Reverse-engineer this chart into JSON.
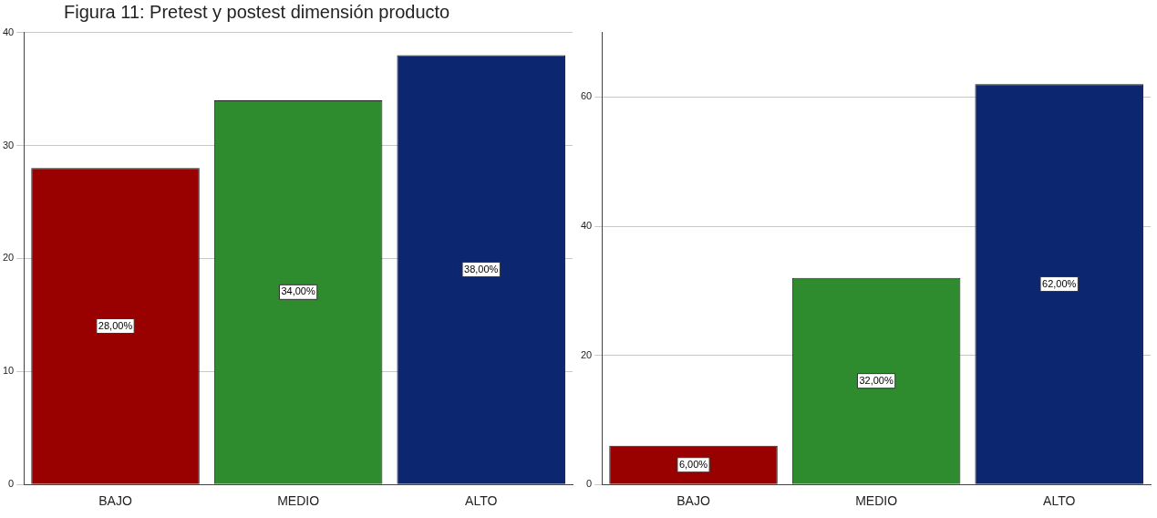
{
  "chart_data": [
    {
      "type": "bar",
      "title": "Figura 11: Pretest y postest dimensión producto",
      "categories": [
        "BAJO",
        "MEDIO",
        "ALTO"
      ],
      "values": [
        28,
        34,
        38
      ],
      "colors": [
        "#990000",
        "#2e8b2e",
        "#0c2670"
      ],
      "value_labels": [
        "28,00%",
        "34,00%",
        "38,00%"
      ],
      "ylim": [
        0,
        40
      ],
      "yticks": [
        0,
        10,
        20,
        30,
        40
      ],
      "grid": "y"
    },
    {
      "type": "bar",
      "categories": [
        "BAJO",
        "MEDIO",
        "ALTO"
      ],
      "values": [
        6,
        32,
        62
      ],
      "colors": [
        "#990000",
        "#2e8b2e",
        "#0c2670"
      ],
      "value_labels": [
        "6,00%",
        "32,00%",
        "62,00%"
      ],
      "ylim": [
        0,
        70
      ],
      "yticks": [
        0,
        20,
        40,
        60
      ],
      "grid": "y"
    }
  ]
}
